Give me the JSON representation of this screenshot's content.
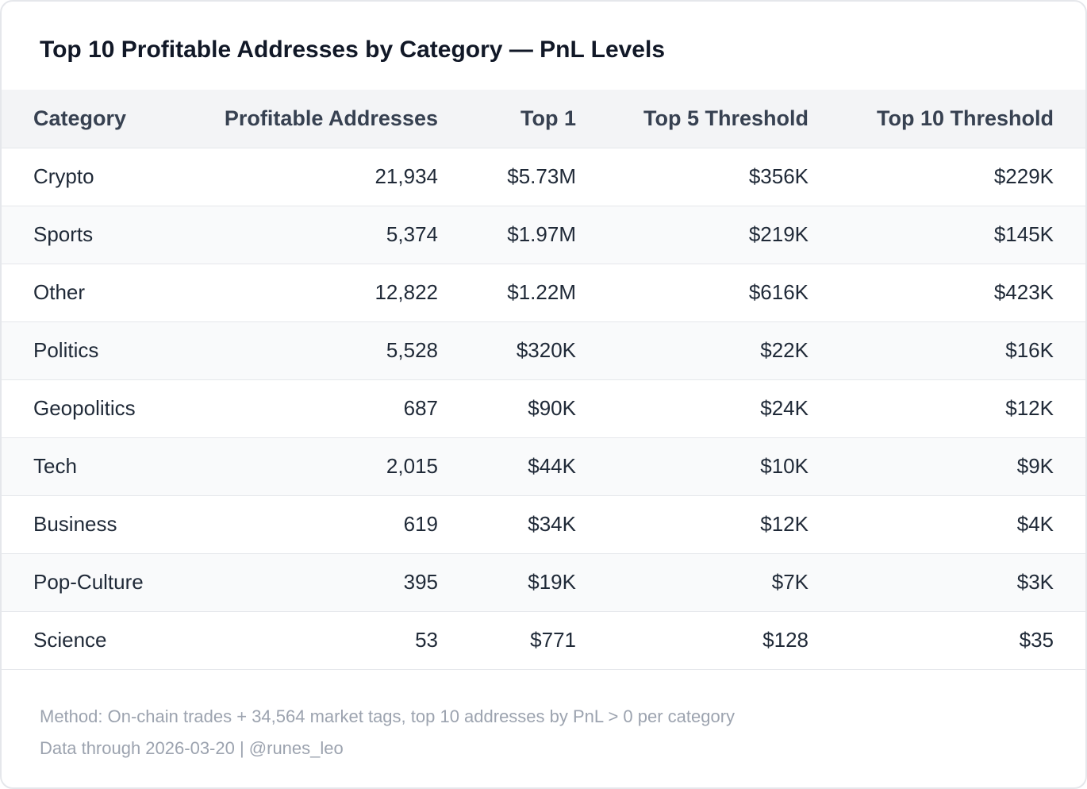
{
  "title": "Top 10 Profitable Addresses by Category — PnL Levels",
  "table": {
    "header": [
      "Category",
      "Profitable Addresses",
      "Top 1",
      "Top 5 Threshold",
      "Top 10 Threshold"
    ],
    "rows": [
      [
        "Crypto",
        "21,934",
        "$5.73M",
        "$356K",
        "$229K"
      ],
      [
        "Sports",
        "5,374",
        "$1.97M",
        "$219K",
        "$145K"
      ],
      [
        "Other",
        "12,822",
        "$1.22M",
        "$616K",
        "$423K"
      ],
      [
        "Politics",
        "5,528",
        "$320K",
        "$22K",
        "$16K"
      ],
      [
        "Geopolitics",
        "687",
        "$90K",
        "$24K",
        "$12K"
      ],
      [
        "Tech",
        "2,015",
        "$44K",
        "$10K",
        "$9K"
      ],
      [
        "Business",
        "619",
        "$34K",
        "$12K",
        "$4K"
      ],
      [
        "Pop-Culture",
        "395",
        "$19K",
        "$7K",
        "$3K"
      ],
      [
        "Science",
        "53",
        "$771",
        "$128",
        "$35"
      ]
    ]
  },
  "footer": [
    "Method: On-chain trades + 34,564 market tags, top 10 addresses by PnL > 0 per category",
    "Data through 2026-03-20 | @runes_leo"
  ]
}
